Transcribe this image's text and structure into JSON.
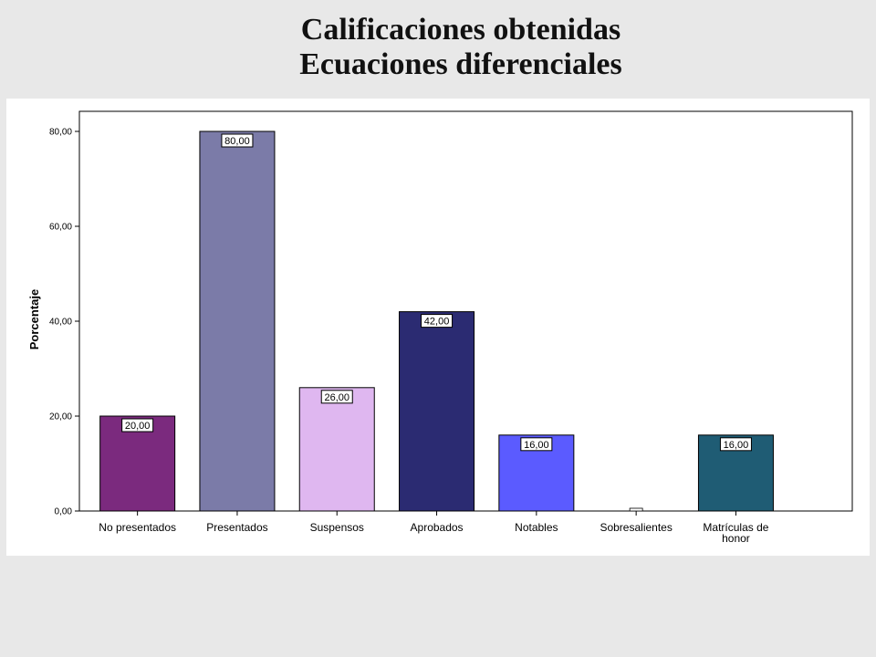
{
  "title_lines": [
    "Calificaciones obtenidas",
    "Ecuaciones diferenciales"
  ],
  "chart_data": {
    "type": "bar",
    "categories": [
      "No presentados",
      "Presentados",
      "Suspensos",
      "Aprobados",
      "Notables",
      "Sobresalientes",
      "Matrículas de honor"
    ],
    "category_label_lines": [
      [
        "No presentados"
      ],
      [
        "Presentados"
      ],
      [
        "Suspensos"
      ],
      [
        "Aprobados"
      ],
      [
        "Notables"
      ],
      [
        "Sobresalientes"
      ],
      [
        "Matrículas de",
        "honor"
      ]
    ],
    "values": [
      20,
      80,
      26,
      42,
      16,
      0,
      16
    ],
    "value_labels": [
      "20,00",
      "80,00",
      "26,00",
      "42,00",
      "16,00",
      "",
      "16,00"
    ],
    "bar_colors": [
      "#7b2a7e",
      "#7b7ba8",
      "#dfb7f0",
      "#2b2b72",
      "#5b5bff",
      "#ffffff",
      "#1f5c74"
    ],
    "ylabel": "Porcentaje",
    "xlabel": "",
    "ylim": [
      0,
      85
    ],
    "yticks": [
      0,
      20,
      40,
      60,
      80
    ],
    "ytick_labels": [
      "0,00",
      "20,00",
      "40,00",
      "60,00",
      "80,00"
    ],
    "grid": false,
    "legend": "none"
  }
}
